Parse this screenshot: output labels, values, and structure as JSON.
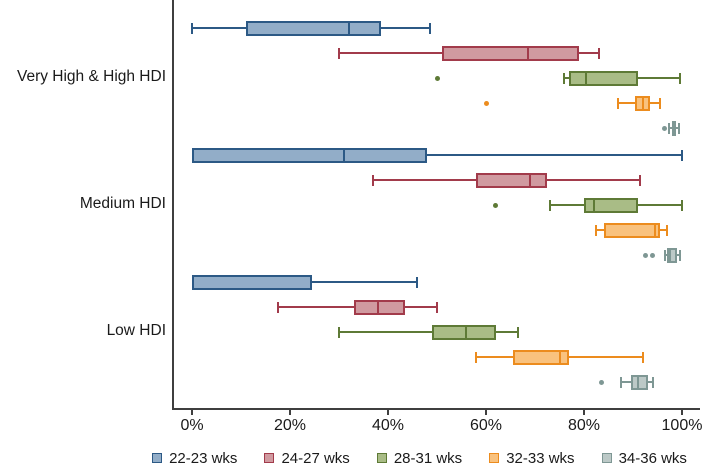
{
  "chart_data": {
    "type": "boxplot",
    "orientation": "horizontal",
    "title": "",
    "xlabel": "",
    "ylabel": "",
    "x_axis": {
      "range": [
        0,
        100
      ],
      "tick_values": [
        0,
        20,
        40,
        60,
        80,
        100
      ],
      "tick_labels": [
        "0%",
        "20%",
        "40%",
        "60%",
        "80%",
        "100%"
      ]
    },
    "groups": [
      "Very High & High HDI",
      "Medium HDI",
      "Low HDI"
    ],
    "legend_position": "bottom",
    "grid": false,
    "series": [
      {
        "name": "22-23 wks",
        "fill": "#92ADC8",
        "stroke": "#2C5985",
        "boxes": [
          {
            "group": "Very High & High HDI",
            "low": 0,
            "q1": 11,
            "median": 32,
            "q3": 38.5,
            "high": 48.5,
            "outliers": []
          },
          {
            "group": "Medium HDI",
            "low": 0,
            "q1": 0,
            "median": 31,
            "q3": 48,
            "high": 100,
            "outliers": []
          },
          {
            "group": "Low HDI",
            "low": 0,
            "q1": 0,
            "median": 0,
            "q3": 24.5,
            "high": 46,
            "outliers": []
          }
        ]
      },
      {
        "name": "24-27 wks",
        "fill": "#D09AA0",
        "stroke": "#A23B4B",
        "boxes": [
          {
            "group": "Very High & High HDI",
            "low": 30,
            "q1": 51,
            "median": 68.5,
            "q3": 79,
            "high": 83,
            "outliers": []
          },
          {
            "group": "Medium HDI",
            "low": 37,
            "q1": 58,
            "median": 69,
            "q3": 72.5,
            "high": 91.5,
            "outliers": []
          },
          {
            "group": "Low HDI",
            "low": 17.5,
            "q1": 33,
            "median": 38,
            "q3": 43.5,
            "high": 50,
            "outliers": []
          }
        ]
      },
      {
        "name": "28-31 wks",
        "fill": "#A9BC86",
        "stroke": "#5E7A36",
        "boxes": [
          {
            "group": "Very High & High HDI",
            "low": 76,
            "q1": 77,
            "median": 80.5,
            "q3": 91,
            "high": 99.5,
            "outliers": [
              50
            ]
          },
          {
            "group": "Medium HDI",
            "low": 73,
            "q1": 80,
            "median": 82,
            "q3": 91,
            "high": 100,
            "outliers": [
              62
            ]
          },
          {
            "group": "Low HDI",
            "low": 30,
            "q1": 49,
            "median": 56,
            "q3": 62,
            "high": 66.5,
            "outliers": []
          }
        ]
      },
      {
        "name": "32-33 wks",
        "fill": "#F9C27E",
        "stroke": "#EC8C1E",
        "boxes": [
          {
            "group": "Very High & High HDI",
            "low": 87,
            "q1": 90.5,
            "median": 92,
            "q3": 93.5,
            "high": 95.5,
            "outliers": [
              60
            ]
          },
          {
            "group": "Medium HDI",
            "low": 82.5,
            "q1": 84,
            "median": 94.5,
            "q3": 95.5,
            "high": 97,
            "outliers": []
          },
          {
            "group": "Low HDI",
            "low": 58,
            "q1": 65.5,
            "median": 75,
            "q3": 77,
            "high": 92,
            "outliers": []
          }
        ]
      },
      {
        "name": "34-36 wks",
        "fill": "#BCC9C7",
        "stroke": "#7E9794",
        "boxes": [
          {
            "group": "Very High & High HDI",
            "low": 97.3,
            "q1": 97.9,
            "median": 98.3,
            "q3": 98.7,
            "high": 99.4,
            "outliers": [
              96.5
            ]
          },
          {
            "group": "Medium HDI",
            "low": 96.5,
            "q1": 97,
            "median": 97.5,
            "q3": 99,
            "high": 99.5,
            "outliers": [
              92.5,
              94
            ]
          },
          {
            "group": "Low HDI",
            "low": 87.5,
            "q1": 89.5,
            "median": 91,
            "q3": 93,
            "high": 94,
            "outliers": [
              83.5
            ]
          }
        ]
      }
    ]
  }
}
